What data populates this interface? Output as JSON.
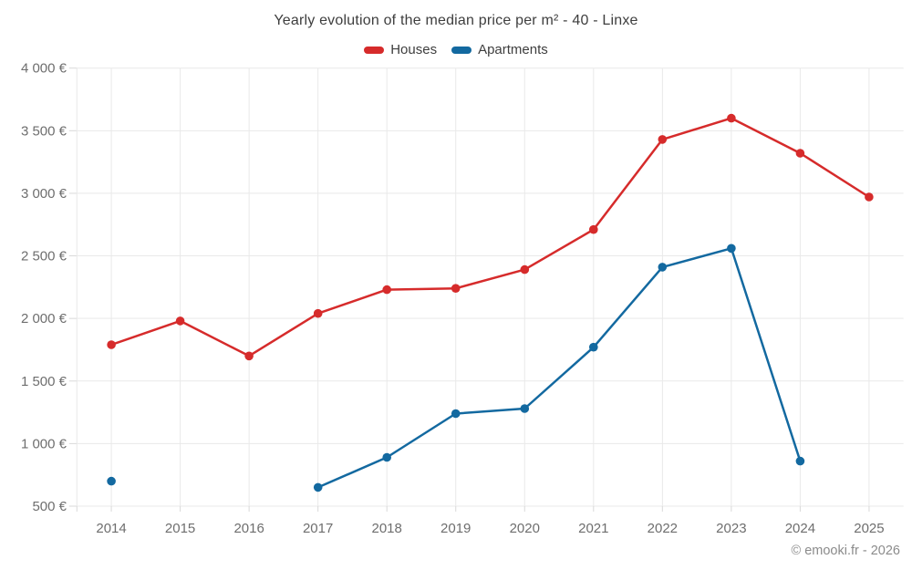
{
  "chart_data": {
    "type": "line",
    "title": "Yearly evolution of the median price per m² - 40 - Linxe",
    "categories": [
      "2014",
      "2015",
      "2016",
      "2017",
      "2018",
      "2019",
      "2020",
      "2021",
      "2022",
      "2023",
      "2024",
      "2025"
    ],
    "series": [
      {
        "name": "Houses",
        "color": "#d62b2b",
        "values": [
          1790,
          1980,
          1700,
          2040,
          2230,
          2240,
          2390,
          2710,
          3430,
          3600,
          3320,
          2970
        ]
      },
      {
        "name": "Apartments",
        "color": "#1369a0",
        "values": [
          700,
          null,
          null,
          650,
          890,
          1240,
          1280,
          1770,
          2410,
          2560,
          860,
          null
        ]
      }
    ],
    "ylim": [
      500,
      4000
    ],
    "ytick_step": 500,
    "ytick_labels": [
      "500 €",
      "1 000 €",
      "1 500 €",
      "2 000 €",
      "2 500 €",
      "3 000 €",
      "3 500 €",
      "4 000 €"
    ],
    "grid": true,
    "legend_position": "top",
    "currency_suffix": "€"
  },
  "copyright": "© emooki.fr - 2026",
  "palette": {
    "grid_color": "#e9e9e9",
    "tick_color": "#d9d9d9",
    "axis_label_color": "#6e6e6e",
    "title_color": "#3e3e3e"
  }
}
